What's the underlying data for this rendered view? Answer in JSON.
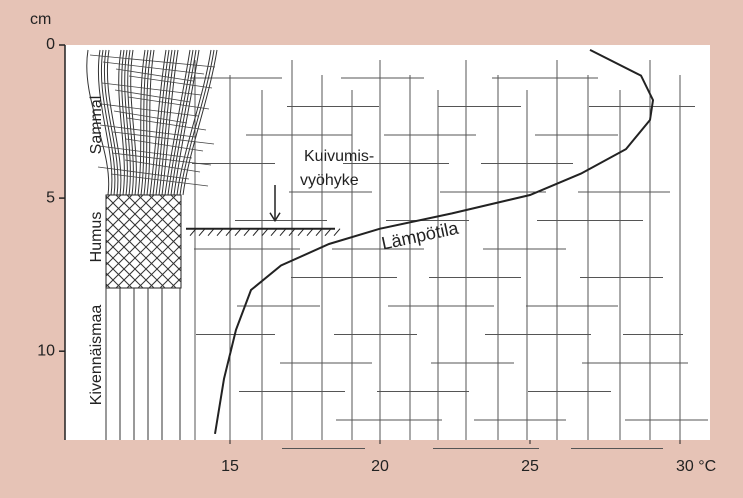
{
  "chart_data": {
    "type": "line",
    "y_label": "cm",
    "xlim": [
      9.5,
      31
    ],
    "ylim": [
      0,
      12.9
    ],
    "xticks": [
      15,
      20,
      25,
      {
        "value": 30,
        "label": "30 °C"
      }
    ],
    "yticks": [
      0,
      5,
      10
    ],
    "series": [
      {
        "name": "Lämpötila",
        "color": "#222222",
        "x": [
          27.0,
          28.7,
          29.1,
          29.0,
          28.2,
          26.7,
          25.0,
          22.4,
          20.0,
          18.3,
          16.7,
          15.7,
          15.2,
          14.8,
          14.5
        ],
        "values": [
          0.16,
          1.0,
          1.8,
          2.45,
          3.4,
          4.2,
          4.9,
          5.5,
          6.0,
          6.5,
          7.2,
          8.0,
          9.3,
          10.9,
          12.7
        ]
      }
    ],
    "layers": [
      "Sammal",
      "Humus",
      "Kivennäismaa"
    ],
    "dry_zone": {
      "label": [
        "Kuivumis-",
        "vyöhyke"
      ],
      "depth": 6.0
    }
  }
}
